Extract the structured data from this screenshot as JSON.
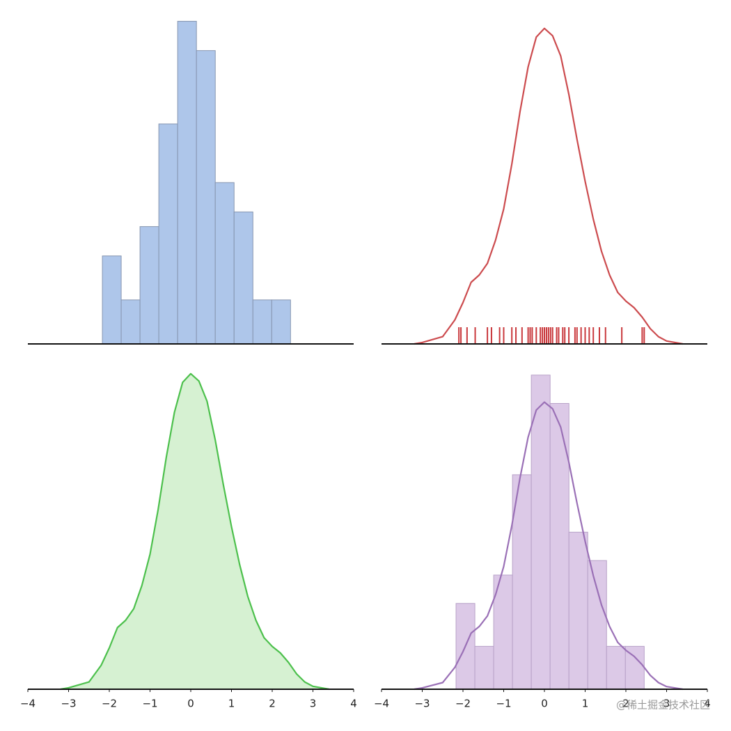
{
  "chart_data": [
    {
      "type": "histogram",
      "color": "#aec6ea",
      "edgecolor": "#8796b0",
      "bins": [
        -2.17,
        -1.708,
        -1.246,
        -0.784,
        -0.322,
        0.14,
        0.602,
        1.064,
        1.526,
        1.988,
        2.45
      ],
      "values": [
        6,
        3,
        8,
        15,
        22,
        20,
        11,
        9,
        3,
        3
      ],
      "xlim": [
        -4,
        4
      ],
      "ylim": [
        0,
        22.5
      ]
    },
    {
      "type": "kde",
      "color": "#cc4b4e",
      "fill": false,
      "x": [
        -3.2,
        -3,
        -2.5,
        -2.2,
        -2,
        -1.8,
        -1.6,
        -1.4,
        -1.2,
        -1,
        -0.8,
        -0.6,
        -0.4,
        -0.2,
        0,
        0.2,
        0.4,
        0.6,
        0.8,
        1,
        1.2,
        1.4,
        1.6,
        1.8,
        2,
        2.2,
        2.4,
        2.6,
        2.8,
        3,
        3.4
      ],
      "values": [
        0,
        0.002,
        0.01,
        0.033,
        0.057,
        0.085,
        0.095,
        0.111,
        0.143,
        0.186,
        0.248,
        0.32,
        0.382,
        0.423,
        0.435,
        0.425,
        0.397,
        0.344,
        0.282,
        0.224,
        0.172,
        0.128,
        0.095,
        0.071,
        0.059,
        0.05,
        0.037,
        0.021,
        0.01,
        0.004,
        0
      ],
      "rug": [
        -2.1,
        -2.05,
        -1.9,
        -1.7,
        -1.4,
        -1.3,
        -1.1,
        -1.0,
        -0.8,
        -0.7,
        -0.55,
        -0.4,
        -0.35,
        -0.3,
        -0.2,
        -0.1,
        -0.05,
        0,
        0.05,
        0.1,
        0.15,
        0.2,
        0.3,
        0.35,
        0.45,
        0.5,
        0.6,
        0.75,
        0.8,
        0.9,
        1.0,
        1.1,
        1.2,
        1.35,
        1.5,
        1.9,
        2.4,
        2.45
      ],
      "rug_color": "#c9383c",
      "xlim": [
        -4,
        4
      ],
      "ylim": [
        0,
        0.455
      ]
    },
    {
      "type": "kde",
      "color": "#4cc04c",
      "fill": true,
      "fill_color": "#d6f1d2",
      "x": [
        -3.2,
        -3,
        -2.5,
        -2.2,
        -2,
        -1.8,
        -1.6,
        -1.4,
        -1.2,
        -1,
        -0.8,
        -0.6,
        -0.4,
        -0.2,
        0,
        0.2,
        0.4,
        0.6,
        0.8,
        1,
        1.2,
        1.4,
        1.6,
        1.8,
        2,
        2.2,
        2.4,
        2.6,
        2.8,
        3,
        3.4
      ],
      "values": [
        0,
        0.002,
        0.01,
        0.033,
        0.057,
        0.085,
        0.095,
        0.111,
        0.143,
        0.186,
        0.248,
        0.32,
        0.382,
        0.423,
        0.435,
        0.425,
        0.397,
        0.344,
        0.282,
        0.224,
        0.172,
        0.128,
        0.095,
        0.071,
        0.059,
        0.05,
        0.037,
        0.021,
        0.01,
        0.004,
        0
      ],
      "xlim": [
        -4,
        4
      ],
      "ylim": [
        0,
        0.455
      ],
      "xticks": [
        {
          "value": -4,
          "label": "−4"
        },
        {
          "value": -3,
          "label": "−3"
        },
        {
          "value": -2,
          "label": "−2"
        },
        {
          "value": -1,
          "label": "−1"
        },
        0,
        1,
        2,
        3,
        4
      ]
    },
    {
      "type": "histogram",
      "color": "#dcc9e7",
      "edgecolor": "#b8a2c8",
      "bins": [
        -2.17,
        -1.708,
        -1.246,
        -0.784,
        -0.322,
        0.14,
        0.602,
        1.064,
        1.526,
        1.988,
        2.45
      ],
      "values": [
        0.13,
        0.065,
        0.173,
        0.325,
        0.476,
        0.433,
        0.238,
        0.195,
        0.065,
        0.065
      ],
      "kde": {
        "color": "#9a70b6",
        "x": [
          -3.2,
          -3,
          -2.5,
          -2.2,
          -2,
          -1.8,
          -1.6,
          -1.4,
          -1.2,
          -1,
          -0.8,
          -0.6,
          -0.4,
          -0.2,
          0,
          0.2,
          0.4,
          0.6,
          0.8,
          1,
          1.2,
          1.4,
          1.6,
          1.8,
          2,
          2.2,
          2.4,
          2.6,
          2.8,
          3,
          3.4
        ],
        "values": [
          0,
          0.002,
          0.01,
          0.033,
          0.057,
          0.085,
          0.095,
          0.111,
          0.143,
          0.186,
          0.248,
          0.32,
          0.382,
          0.423,
          0.435,
          0.425,
          0.397,
          0.344,
          0.282,
          0.224,
          0.172,
          0.128,
          0.095,
          0.071,
          0.059,
          0.05,
          0.037,
          0.021,
          0.01,
          0.004,
          0
        ]
      },
      "xlim": [
        -4,
        4
      ],
      "ylim": [
        0,
        0.5
      ],
      "xticks": [
        {
          "value": -4,
          "label": "−4"
        },
        {
          "value": -3,
          "label": "−3"
        },
        {
          "value": -2,
          "label": "−2"
        },
        {
          "value": -1,
          "label": "−1"
        },
        0,
        1,
        2,
        3,
        4
      ]
    }
  ],
  "watermark": "@稀土掘金技术社区"
}
